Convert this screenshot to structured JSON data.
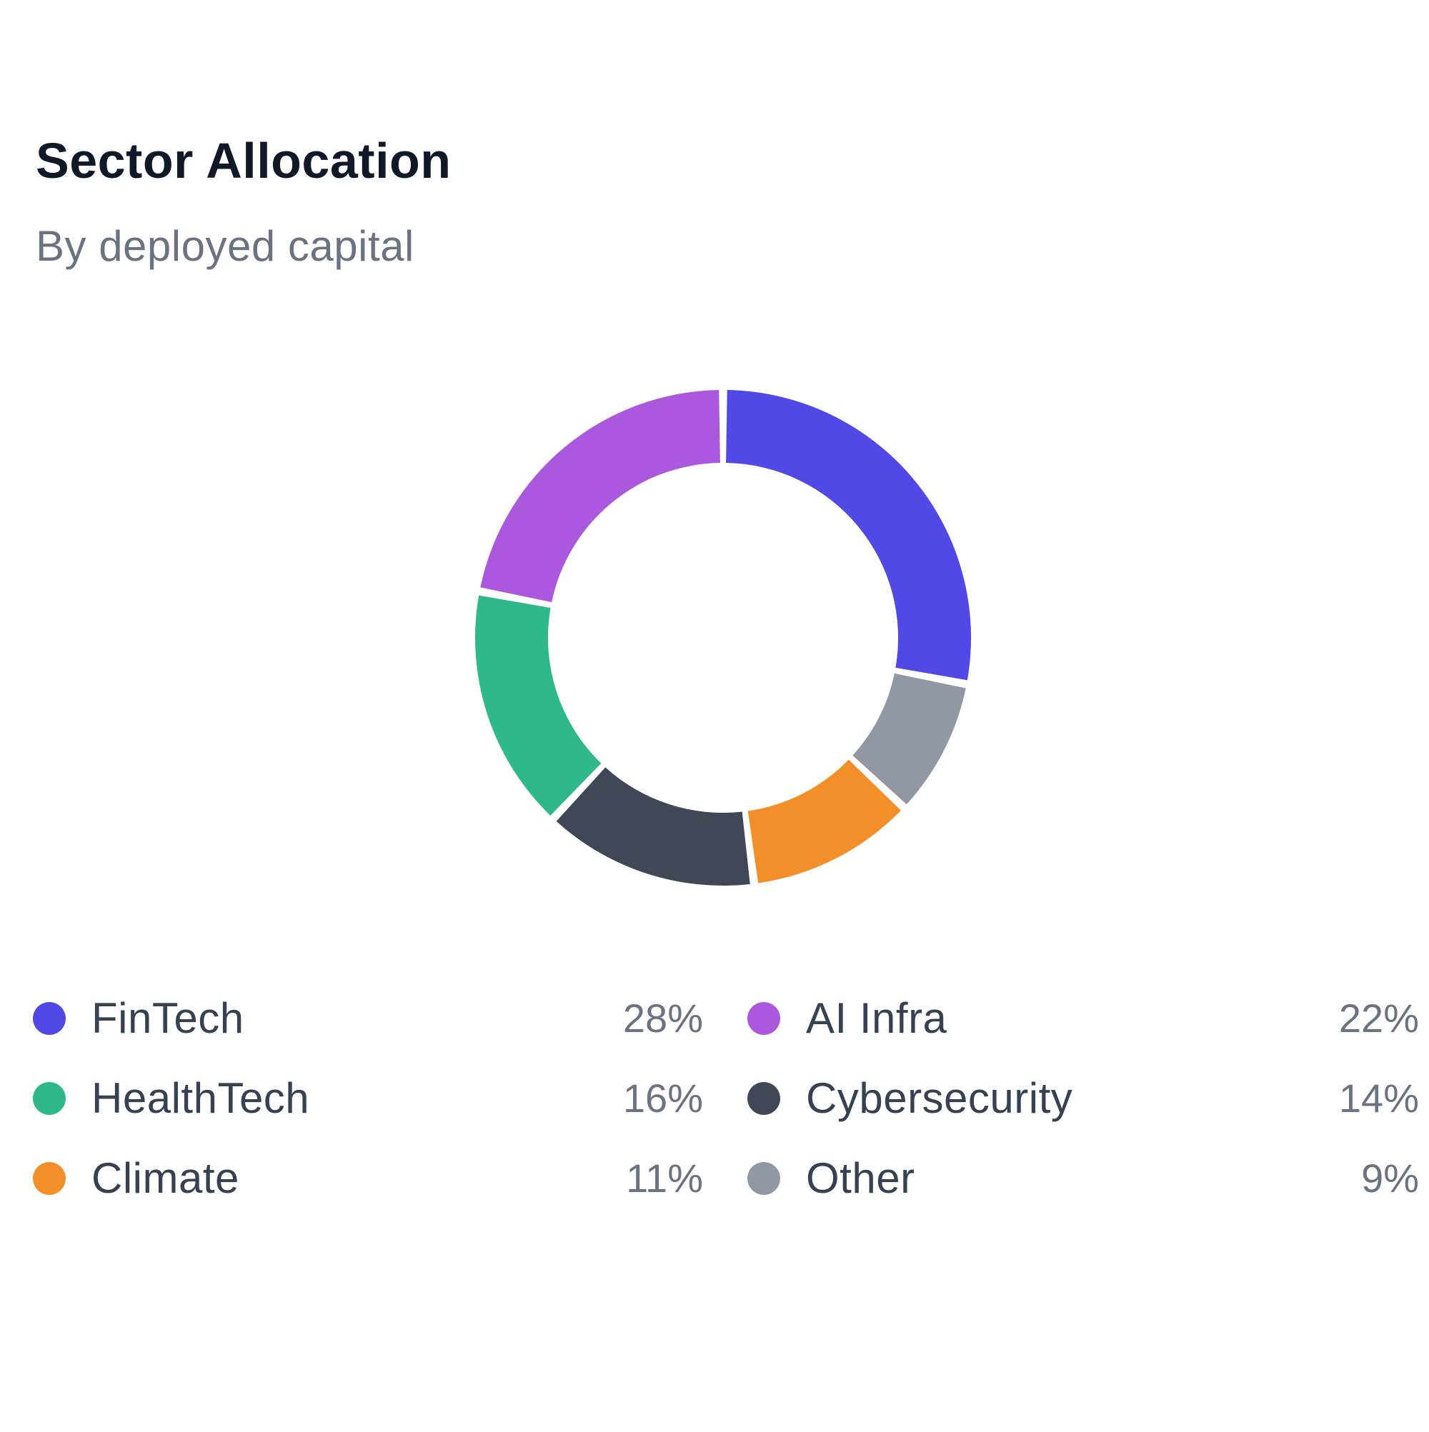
{
  "header": {
    "title": "Sector Allocation",
    "subtitle": "By deployed capital"
  },
  "chart_data": {
    "type": "pie",
    "variant": "donut",
    "title": "Sector Allocation",
    "subtitle": "By deployed capital",
    "categories": [
      "FinTech",
      "AI Infra",
      "HealthTech",
      "Cybersecurity",
      "Climate",
      "Other"
    ],
    "values": [
      28,
      22,
      16,
      14,
      11,
      9
    ],
    "unit": "%",
    "colors": [
      "#5049e5",
      "#ab58de",
      "#2fb889",
      "#414757",
      "#f28f29",
      "#9298a3"
    ],
    "slice_order_clockwise_from_top": [
      "FinTech",
      "Other",
      "Climate",
      "Cybersecurity",
      "HealthTech",
      "AI Infra"
    ],
    "legend_placement": "bottom"
  },
  "legend": {
    "rows": [
      [
        {
          "label": "FinTech",
          "value": "28%",
          "color": "#5049e5"
        },
        {
          "label": "AI Infra",
          "value": "22%",
          "color": "#ab58de"
        }
      ],
      [
        {
          "label": "HealthTech",
          "value": "16%",
          "color": "#2fb889"
        },
        {
          "label": "Cybersecurity",
          "value": "14%",
          "color": "#414757"
        }
      ],
      [
        {
          "label": "Climate",
          "value": "11%",
          "color": "#f28f29"
        },
        {
          "label": "Other",
          "value": "9%",
          "color": "#9298a3"
        }
      ]
    ]
  }
}
